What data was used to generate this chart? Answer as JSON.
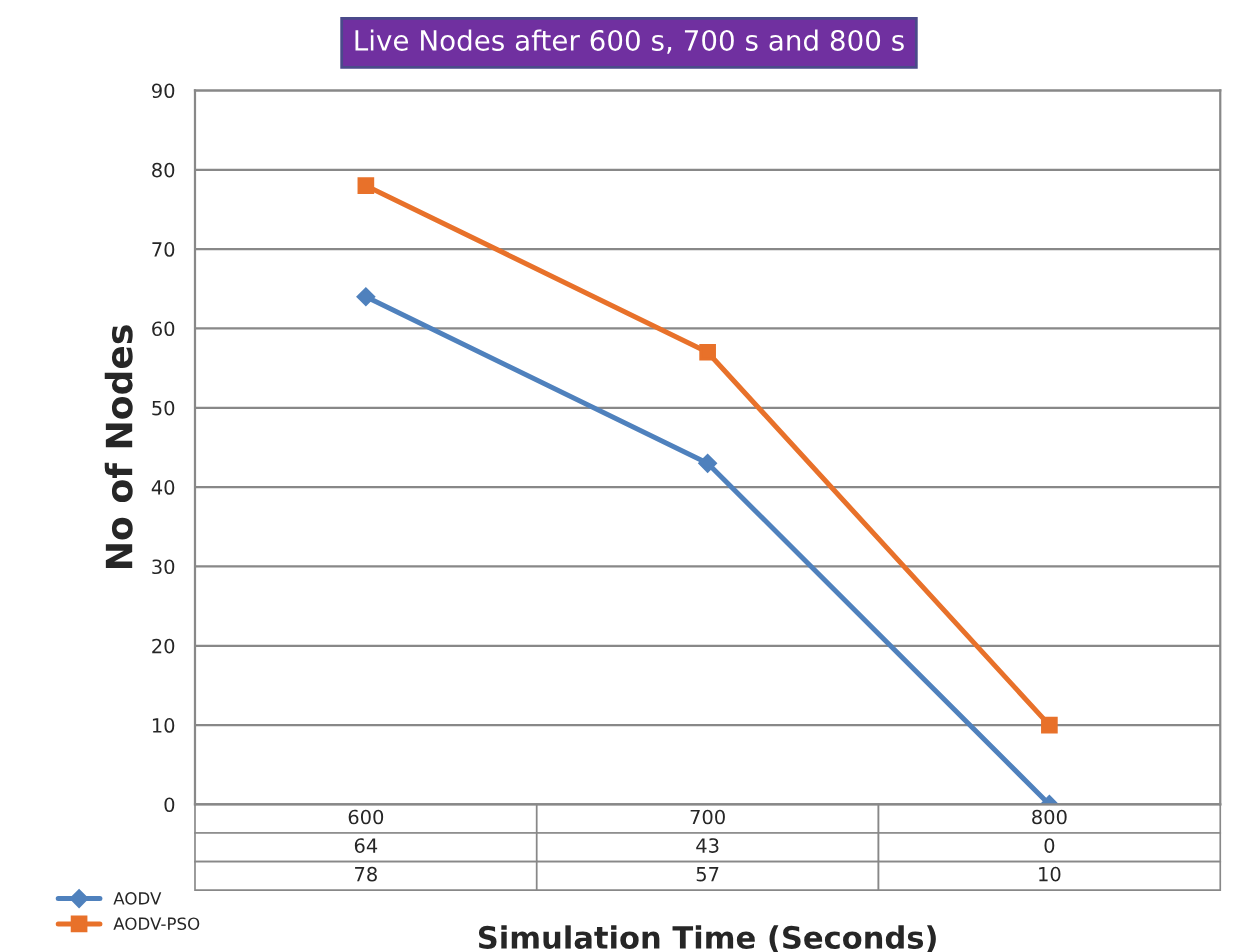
{
  "chart_data": {
    "type": "line",
    "title": "Live Nodes after 600 s, 700 s and 800 s",
    "xlabel": "Simulation Time (Seconds)",
    "ylabel": "No of Nodes",
    "categories": [
      "600",
      "700",
      "800"
    ],
    "series": [
      {
        "name": "AODV",
        "color": "#4f81bd",
        "values": [
          64,
          43,
          0
        ],
        "marker": "diamond"
      },
      {
        "name": "AODV-PSO",
        "color": "#e8712a",
        "values": [
          78,
          57,
          10
        ],
        "marker": "square"
      }
    ],
    "ylim": [
      0,
      90
    ],
    "yticks": [
      0,
      10,
      20,
      30,
      40,
      50,
      60,
      70,
      80,
      90
    ],
    "grid": "y",
    "data_labels": true,
    "legend": "bottom left",
    "line_style": "solid"
  }
}
